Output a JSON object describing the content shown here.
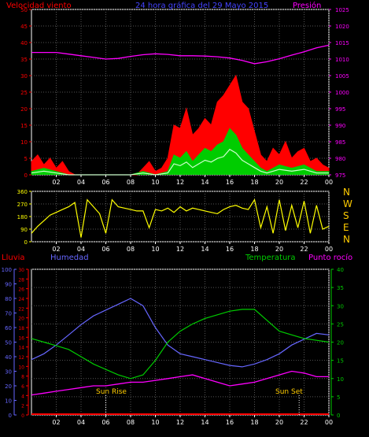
{
  "header": {
    "left_label": "Velocidad viento",
    "center_label": "24 hora gráfica del   29 Mayo 2015",
    "right_label": "Presión"
  },
  "lower_header": {
    "rain_label": "Lluvia",
    "humidity_label": "Humedad",
    "temperature_label": "Temperatura",
    "dewpoint_label": "Punto rocío"
  },
  "compass": [
    "N",
    "W",
    "S",
    "E",
    "N"
  ],
  "annotations": {
    "sunrise": "Sun Rise",
    "sunset": "Sun Set"
  },
  "colors": {
    "wind": "#ff0000",
    "gust_fill": "#00cc00",
    "wind_avg": "#ccffcc",
    "pressure": "#ff00ff",
    "direction": "#ffff00",
    "humidity": "#6666ff",
    "temperature": "#00cc00",
    "dewpoint": "#ff00ff",
    "rain": "#ff0000",
    "grid": "#555555",
    "frame": "#ffffff"
  },
  "chart_data": [
    {
      "type": "area",
      "x_tick_labels": [
        "02",
        "04",
        "06",
        "08",
        "10",
        "12",
        "14",
        "16",
        "18",
        "20",
        "22",
        "00"
      ],
      "y_left": {
        "ticks": [
          0,
          5,
          10,
          15,
          20,
          25,
          30,
          35,
          40,
          45,
          50
        ],
        "ylim": [
          0,
          50
        ]
      },
      "y_right": {
        "ticks": [
          975,
          980,
          985,
          990,
          995,
          1000,
          1005,
          1010,
          1015,
          1020,
          1025
        ],
        "ylim": [
          975,
          1025
        ]
      },
      "series": [
        {
          "name": "Velocidad viento",
          "x": [
            0,
            0.5,
            1,
            1.5,
            2,
            2.5,
            3,
            3.5,
            4,
            4.5,
            5,
            5.5,
            6,
            6.5,
            7,
            7.5,
            8,
            8.5,
            9,
            9.5,
            10,
            10.5,
            11,
            11.5,
            12,
            12.5,
            13,
            13.5,
            14,
            14.5,
            15,
            15.5,
            16,
            16.5,
            17,
            17.5,
            18,
            18.5,
            19,
            19.5,
            20,
            20.5,
            21,
            21.5,
            22,
            22.5,
            23,
            23.5,
            24
          ],
          "values": [
            4,
            6,
            3,
            5,
            2,
            4,
            1,
            0,
            0,
            0,
            0,
            0,
            0,
            0,
            0,
            0,
            0,
            0,
            2,
            4,
            1,
            2,
            5,
            15,
            14,
            20,
            12,
            14,
            17,
            15,
            22,
            24,
            27,
            30,
            22,
            20,
            13,
            6,
            4,
            8,
            6,
            10,
            5,
            7,
            8,
            4,
            5,
            3,
            2
          ]
        },
        {
          "name": "Gust",
          "x": [
            0,
            1,
            2,
            3,
            4,
            6,
            8,
            9,
            10,
            11,
            11.5,
            12,
            12.5,
            13,
            13.5,
            14,
            14.5,
            15,
            15.5,
            16,
            16.5,
            17,
            17.5,
            18,
            18.5,
            19,
            20,
            21,
            22,
            23,
            24
          ],
          "values": [
            1,
            2,
            1,
            0,
            0,
            0,
            0,
            1,
            0,
            1,
            6,
            5,
            7,
            4,
            6,
            8,
            7,
            9,
            10,
            14,
            12,
            8,
            6,
            4,
            2,
            1,
            3,
            2,
            3,
            1,
            1
          ]
        },
        {
          "name": "Presión",
          "x": [
            0,
            1,
            2,
            3,
            4,
            5,
            6,
            7,
            8,
            9,
            10,
            11,
            12,
            13,
            14,
            15,
            16,
            17,
            18,
            19,
            20,
            21,
            22,
            23,
            24
          ],
          "values": [
            1012,
            1012,
            1012,
            1011.5,
            1011,
            1010.5,
            1010,
            1010.2,
            1010.8,
            1011.3,
            1011.6,
            1011.4,
            1011,
            1011,
            1010.9,
            1010.7,
            1010.3,
            1009.6,
            1008.6,
            1009.2,
            1010.1,
            1011.2,
            1012.2,
            1013.4,
            1014.2
          ]
        }
      ]
    },
    {
      "type": "line",
      "x_tick_labels": [
        "02",
        "04",
        "06",
        "08",
        "10",
        "12",
        "14",
        "16",
        "18",
        "20",
        "22",
        "00"
      ],
      "y_left": {
        "ticks": [
          0,
          90,
          180,
          270,
          360
        ],
        "ylim": [
          0,
          360
        ]
      },
      "series": [
        {
          "name": "Direction",
          "x": [
            0,
            0.5,
            1,
            1.5,
            2,
            2.5,
            3,
            3.5,
            4,
            4.5,
            5,
            5.5,
            6,
            6.5,
            7,
            7.5,
            8,
            8.5,
            9,
            9.5,
            10,
            10.5,
            11,
            11.5,
            12,
            12.5,
            13,
            13.5,
            14,
            14.5,
            15,
            15.5,
            16,
            16.5,
            17,
            17.5,
            18,
            18.5,
            19,
            19.5,
            20,
            20.5,
            21,
            21.5,
            22,
            22.5,
            23,
            23.5,
            24
          ],
          "values": [
            60,
            110,
            150,
            190,
            210,
            230,
            250,
            280,
            30,
            300,
            250,
            200,
            60,
            300,
            250,
            240,
            230,
            220,
            220,
            100,
            230,
            220,
            240,
            210,
            250,
            220,
            240,
            230,
            220,
            210,
            200,
            230,
            250,
            260,
            240,
            230,
            300,
            100,
            250,
            60,
            300,
            80,
            260,
            100,
            290,
            60,
            260,
            90,
            110
          ]
        }
      ]
    },
    {
      "type": "line",
      "x_tick_labels": [
        "02",
        "04",
        "06",
        "08",
        "10",
        "12",
        "14",
        "16",
        "18",
        "20",
        "22",
        "00"
      ],
      "y_left_rain": {
        "ticks": [
          0,
          2,
          4,
          6,
          8,
          10,
          12,
          14,
          16,
          18,
          20,
          22,
          24,
          26,
          28,
          30
        ],
        "ylim": [
          0,
          30
        ]
      },
      "y_left_humidity": {
        "ticks": [
          0,
          10,
          20,
          30,
          40,
          50,
          60,
          70,
          80,
          90,
          100
        ],
        "ylim": [
          0,
          100
        ]
      },
      "y_right": {
        "ticks": [
          0,
          5,
          10,
          15,
          20,
          25,
          30,
          35,
          40
        ],
        "ylim": [
          0,
          40
        ]
      },
      "series": [
        {
          "name": "Humedad",
          "x": [
            0,
            1,
            2,
            3,
            4,
            5,
            6,
            7,
            8,
            9,
            10,
            11,
            12,
            13,
            14,
            15,
            16,
            17,
            18,
            19,
            20,
            21,
            22,
            23,
            24
          ],
          "values": [
            38,
            42,
            48,
            55,
            62,
            68,
            72,
            76,
            80,
            75,
            60,
            48,
            42,
            40,
            38,
            36,
            34,
            33,
            35,
            38,
            42,
            48,
            52,
            56,
            55
          ]
        },
        {
          "name": "Temperatura",
          "x": [
            0,
            1,
            2,
            3,
            4,
            5,
            6,
            7,
            8,
            9,
            10,
            11,
            12,
            13,
            14,
            15,
            16,
            17,
            18,
            19,
            20,
            21,
            22,
            23,
            24
          ],
          "values": [
            21,
            20,
            19,
            18,
            16,
            14,
            12.5,
            11,
            10,
            11,
            15,
            20,
            23,
            25,
            26.5,
            27.5,
            28.5,
            29,
            29,
            26,
            23,
            22,
            21,
            20.5,
            20
          ]
        },
        {
          "name": "Punto rocío",
          "x": [
            0,
            1,
            2,
            3,
            4,
            5,
            6,
            7,
            8,
            9,
            10,
            11,
            12,
            13,
            14,
            15,
            16,
            17,
            18,
            19,
            20,
            21,
            22,
            23,
            24
          ],
          "values": [
            5.5,
            6,
            6.5,
            7,
            7.5,
            8,
            8,
            8.5,
            9,
            9,
            9.5,
            10,
            10.5,
            11,
            10,
            9,
            8,
            8.5,
            9,
            10,
            11,
            12,
            11.5,
            10.5,
            10.5
          ]
        },
        {
          "name": "Lluvia",
          "x": [
            0,
            24
          ],
          "values": [
            0,
            0
          ]
        }
      ]
    }
  ]
}
